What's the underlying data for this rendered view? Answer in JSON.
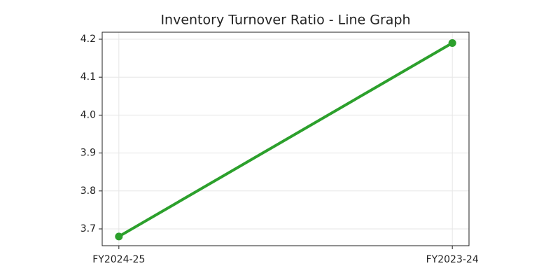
{
  "chart_data": {
    "type": "line",
    "title": "Inventory Turnover Ratio - Line Graph",
    "categories": [
      "FY2024-25",
      "FY2023-24"
    ],
    "values": [
      3.68,
      4.19
    ],
    "color": "#2ca02c",
    "ylim": [
      3.6557,
      4.2185
    ],
    "yticks": [
      3.7,
      3.8,
      3.9,
      {
        "value": 4,
        "label": "4.0"
      },
      4.1,
      4.2
    ],
    "grid": true
  }
}
